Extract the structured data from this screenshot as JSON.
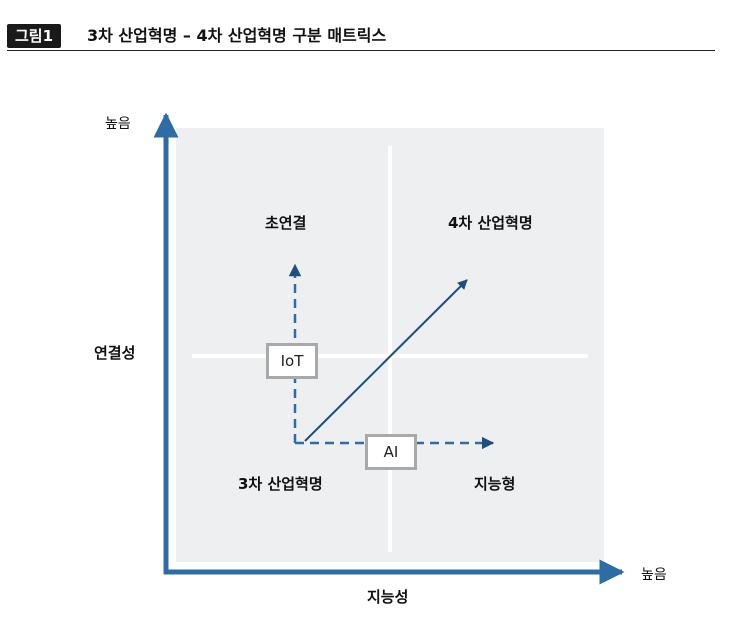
{
  "header": {
    "figure_label": "그림1",
    "title": "3차 산업혁명 – 4차 산업혁명 구분 매트릭스"
  },
  "axes": {
    "y_high_label": "높음",
    "y_label": "연결성",
    "x_high_label": "높음",
    "x_label": "지능성"
  },
  "quadrants": {
    "top_left": "초연결",
    "top_right": "4차 산업혁명",
    "bottom_left": "3차 산업혁명",
    "bottom_right": "지능형"
  },
  "tags": {
    "vertical": "IoT",
    "horizontal": "AI"
  },
  "colors": {
    "axis": "#2e6ca5",
    "plot_background": "#eeeff1",
    "arrow": "#1f4f7a",
    "tag_border": "#a9a9a9"
  }
}
